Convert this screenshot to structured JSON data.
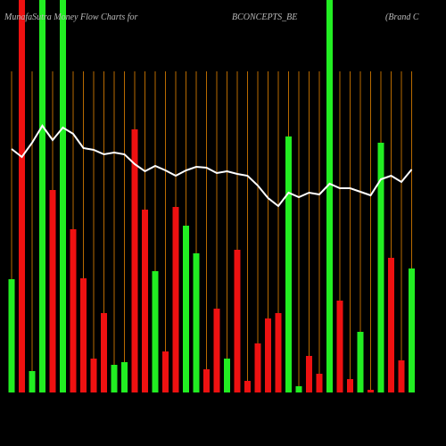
{
  "chart_data": {
    "type": "bar",
    "title_parts": [
      "MunafaSutra Money Flow Charts for",
      "BCONCEPTS_BE",
      "(Brand C"
    ],
    "bar_values": [
      127,
      440,
      24,
      440,
      227,
      440,
      183,
      128,
      38,
      89,
      31,
      34,
      295,
      205,
      136,
      46,
      208,
      187,
      156,
      26,
      94,
      38,
      160,
      13,
      55,
      83,
      89,
      287,
      7,
      41,
      21,
      440,
      103,
      15,
      68,
      3,
      280,
      151,
      36,
      139
    ],
    "bar_colors": [
      "#22ee22",
      "#ee1111",
      "#22ee22",
      "#22ee22",
      "#ee1111",
      "#22ee22",
      "#ee1111",
      "#ee1111",
      "#ee1111",
      "#ee1111",
      "#22ee22",
      "#22ee22",
      "#ee1111",
      "#ee1111",
      "#22ee22",
      "#ee1111",
      "#ee1111",
      "#22ee22",
      "#22ee22",
      "#ee1111",
      "#ee1111",
      "#22ee22",
      "#ee1111",
      "#ee1111",
      "#ee1111",
      "#ee1111",
      "#ee1111",
      "#22ee22",
      "#22ee22",
      "#ee1111",
      "#ee1111",
      "#22ee22",
      "#ee1111",
      "#ee1111",
      "#22ee22",
      "#ee1111",
      "#22ee22",
      "#ee1111",
      "#ee1111",
      "#22ee22"
    ],
    "line_values": [
      273,
      264,
      280,
      299,
      283,
      297,
      290,
      274,
      272,
      267,
      269,
      267,
      256,
      248,
      254,
      249,
      243,
      249,
      253,
      252,
      246,
      248,
      245,
      243,
      232,
      218,
      209,
      224,
      219,
      224,
      222,
      234,
      229,
      229,
      225,
      221,
      239,
      243,
      236,
      250
    ],
    "line_color": "#ffffff",
    "ylim": [
      0,
      440
    ],
    "grid_color": "#b86a00"
  }
}
